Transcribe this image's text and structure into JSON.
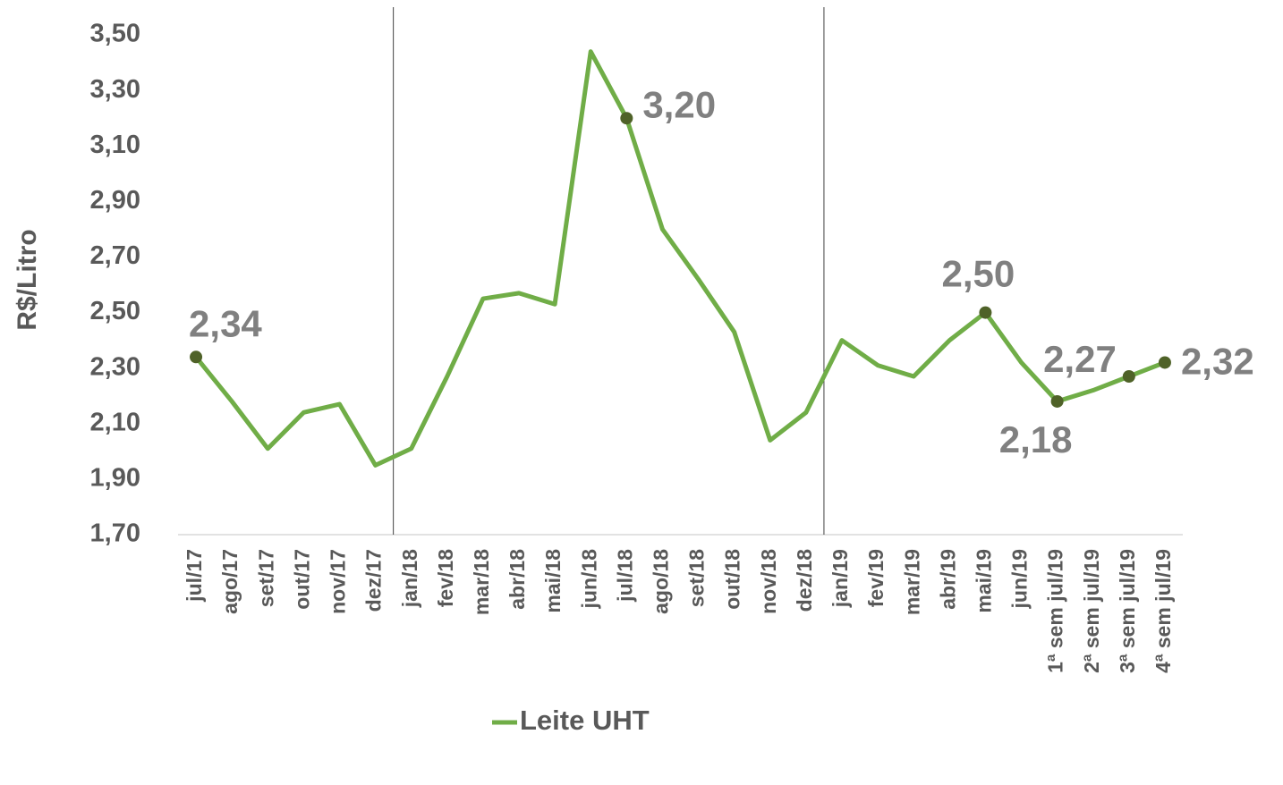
{
  "chart_data": {
    "type": "line",
    "y_label": "R$/Litro",
    "categories": [
      "jul/17",
      "ago/17",
      "set/17",
      "out/17",
      "nov/17",
      "dez/17",
      "jan/18",
      "fev/18",
      "mar/18",
      "abr/18",
      "mai/18",
      "jun/18",
      "jul/18",
      "ago/18",
      "set/18",
      "out/18",
      "nov/18",
      "dez/18",
      "jan/19",
      "fev/19",
      "mar/19",
      "abr/19",
      "mai/19",
      "jun/19",
      "1ª sem jul/19",
      "2ª sem jul/19",
      "3ª sem jul/19",
      "4ª sem jul/19"
    ],
    "series": [
      {
        "name": "Leite UHT",
        "color": "#70ad47",
        "marker_color": "#4f6228",
        "values": [
          2.34,
          2.18,
          2.01,
          2.14,
          2.17,
          1.95,
          2.01,
          2.27,
          2.55,
          2.57,
          2.53,
          3.44,
          3.2,
          2.8,
          2.62,
          2.43,
          2.04,
          2.14,
          2.4,
          2.31,
          2.27,
          2.4,
          2.5,
          2.32,
          2.18,
          2.22,
          2.27,
          2.32
        ],
        "value_labels": [
          "2,34",
          null,
          null,
          null,
          null,
          null,
          null,
          null,
          null,
          null,
          null,
          null,
          "3,20",
          null,
          null,
          null,
          null,
          null,
          null,
          null,
          null,
          null,
          "2,50",
          null,
          "2,18",
          null,
          "2,27",
          "2,32"
        ]
      }
    ],
    "ylim": [
      1.7,
      3.6
    ],
    "yticks": [
      {
        "value": 1.7,
        "label": "1,70"
      },
      {
        "value": 1.9,
        "label": "1,90"
      },
      {
        "value": 2.1,
        "label": "2,10"
      },
      {
        "value": 2.3,
        "label": "2,30"
      },
      {
        "value": 2.5,
        "label": "2,50"
      },
      {
        "value": 2.7,
        "label": "2,70"
      },
      {
        "value": 2.9,
        "label": "2,90"
      },
      {
        "value": 3.1,
        "label": "3,10"
      },
      {
        "value": 3.3,
        "label": "3,30"
      },
      {
        "value": 3.5,
        "label": "3,50"
      }
    ],
    "grid": false
  }
}
